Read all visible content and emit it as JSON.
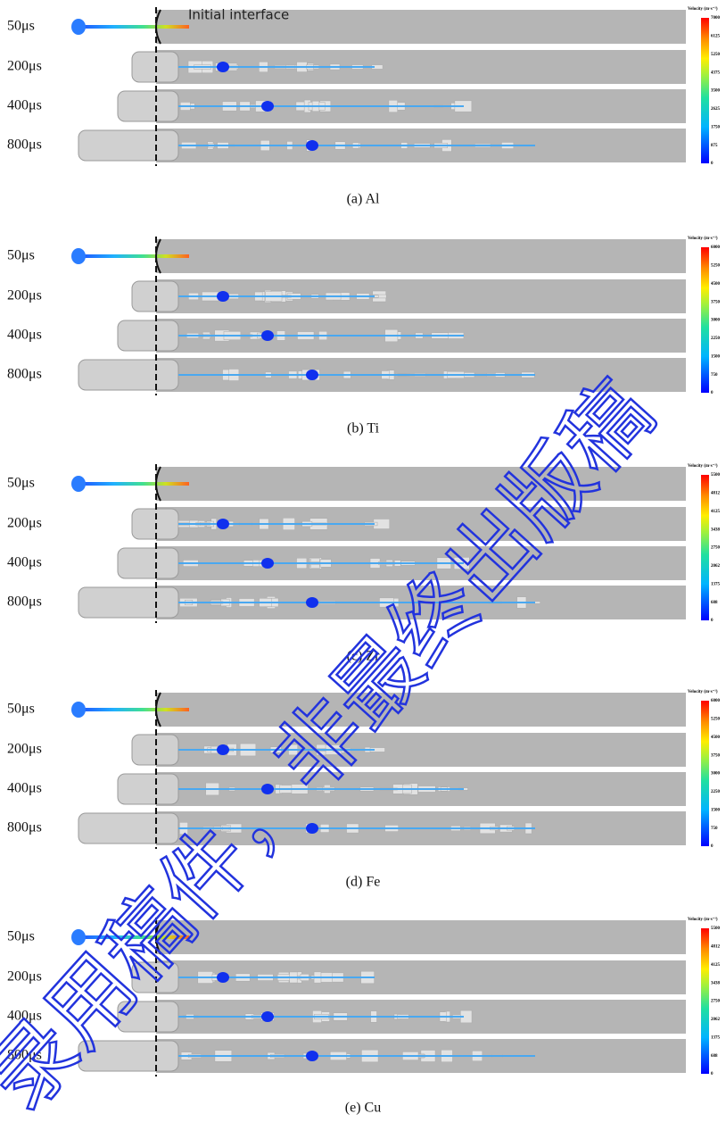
{
  "figure": {
    "annotation": "Initial interface",
    "watermark": "录用稿件，非最终出版稿",
    "panels": [
      {
        "caption": "(a) Al",
        "rows": [
          "50μs",
          "200μs",
          "400μs",
          "800μs"
        ],
        "colorbar_title": "Velocity (m·s⁻¹)",
        "colorbar_ticks": [
          7000,
          6125,
          5250,
          4375,
          3500,
          2625,
          1750,
          875,
          0
        ]
      },
      {
        "caption": "(b) Ti",
        "rows": [
          "50μs",
          "200μs",
          "400μs",
          "800μs"
        ],
        "colorbar_title": "Velocity (m·s⁻¹)",
        "colorbar_ticks": [
          6000,
          5250,
          4500,
          3750,
          3000,
          2250,
          1500,
          750,
          0
        ]
      },
      {
        "caption": "(c) Zr",
        "rows": [
          "50μs",
          "200μs",
          "400μs",
          "800μs"
        ],
        "colorbar_title": "Velocity (m·s⁻¹)",
        "colorbar_ticks": [
          5500,
          4812,
          4125,
          3438,
          2750,
          2062,
          1375,
          688,
          0
        ]
      },
      {
        "caption": "(d) Fe",
        "rows": [
          "50μs",
          "200μs",
          "400μs",
          "800μs"
        ],
        "colorbar_title": "Velocity (m·s⁻¹)",
        "colorbar_ticks": [
          6000,
          5250,
          4500,
          3750,
          3000,
          2250,
          1500,
          750,
          0
        ]
      },
      {
        "caption": "(e) Cu",
        "rows": [
          "50μs",
          "200μs",
          "400μs",
          "800μs"
        ],
        "colorbar_title": "Velocity (m·s⁻¹)",
        "colorbar_ticks": [
          5500,
          4812,
          4125,
          3438,
          2750,
          2062,
          1375,
          688,
          0
        ]
      }
    ]
  }
}
